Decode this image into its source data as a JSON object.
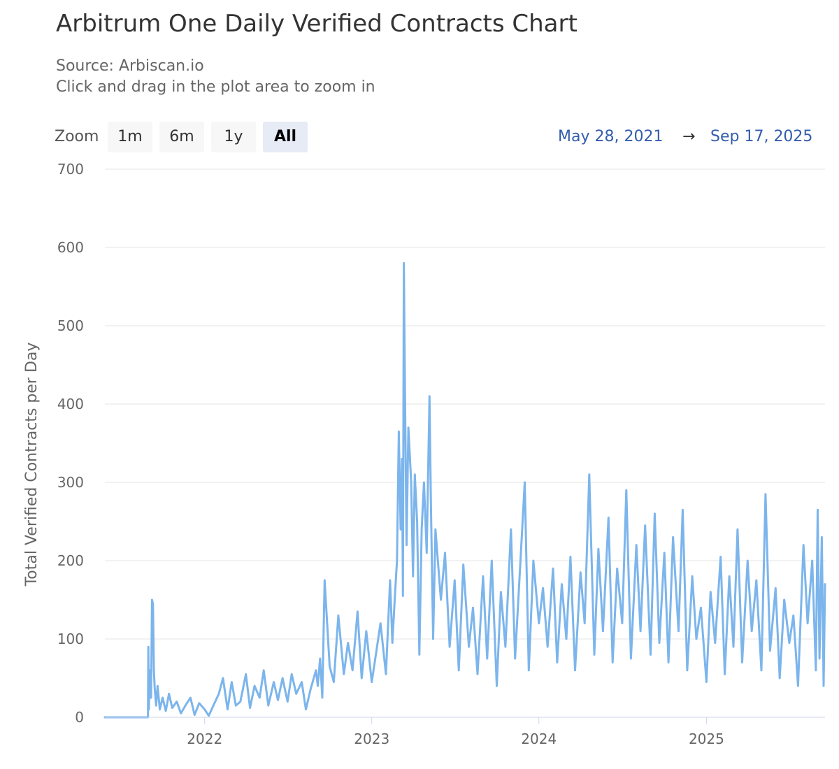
{
  "title": "Arbitrum One Daily Verified Contracts Chart",
  "subtitle_source": "Source: Arbiscan.io",
  "subtitle_hint": "Click and drag in the plot area to zoom in",
  "zoom": {
    "label": "Zoom",
    "buttons": [
      "1m",
      "6m",
      "1y",
      "All"
    ],
    "selected": "All"
  },
  "range": {
    "from": "May 28, 2021",
    "arrow": "→",
    "to": "Sep 17, 2025"
  },
  "colors": {
    "series": "#7cb5ec",
    "grid": "#e6e6e6",
    "axis": "#ccd6eb"
  },
  "chart_data": {
    "type": "line",
    "title": "Arbitrum One Daily Verified Contracts Chart",
    "ylabel": "Total Verified Contracts per Day",
    "xlabel": "",
    "xlim": [
      "2021-05-28",
      "2025-09-17"
    ],
    "ylim": [
      0,
      700
    ],
    "y_ticks": [
      0,
      100,
      200,
      300,
      400,
      500,
      600,
      700
    ],
    "x_ticks": [
      "2022",
      "2023",
      "2024",
      "2025"
    ],
    "x_tick_dates": [
      "2022-01-01",
      "2023-01-01",
      "2024-01-01",
      "2025-01-01"
    ],
    "grid": true,
    "legend": "none",
    "series": [
      {
        "x": [
          "2021-05-28",
          "2021-08-30",
          "2021-08-31",
          "2021-09-01",
          "2021-09-03",
          "2021-09-06",
          "2021-09-08",
          "2021-09-10",
          "2021-09-12",
          "2021-09-14",
          "2021-09-17",
          "2021-09-20",
          "2021-09-25",
          "2021-10-01",
          "2021-10-08",
          "2021-10-15",
          "2021-10-22",
          "2021-11-01",
          "2021-11-10",
          "2021-11-20",
          "2021-12-01",
          "2021-12-10",
          "2021-12-20",
          "2022-01-01",
          "2022-01-10",
          "2022-01-20",
          "2022-02-01",
          "2022-02-10",
          "2022-02-20",
          "2022-03-01",
          "2022-03-10",
          "2022-03-20",
          "2022-04-01",
          "2022-04-10",
          "2022-04-20",
          "2022-05-01",
          "2022-05-10",
          "2022-05-20",
          "2022-06-01",
          "2022-06-10",
          "2022-06-20",
          "2022-07-01",
          "2022-07-10",
          "2022-07-20",
          "2022-08-01",
          "2022-08-10",
          "2022-08-20",
          "2022-09-01",
          "2022-09-05",
          "2022-09-10",
          "2022-09-15",
          "2022-09-20",
          "2022-10-01",
          "2022-10-10",
          "2022-10-20",
          "2022-11-01",
          "2022-11-10",
          "2022-11-20",
          "2022-12-01",
          "2022-12-10",
          "2022-12-20",
          "2023-01-01",
          "2023-01-10",
          "2023-01-20",
          "2023-02-01",
          "2023-02-10",
          "2023-02-15",
          "2023-02-20",
          "2023-02-25",
          "2023-03-01",
          "2023-03-05",
          "2023-03-08",
          "2023-03-10",
          "2023-03-12",
          "2023-03-15",
          "2023-03-18",
          "2023-03-22",
          "2023-03-28",
          "2023-04-01",
          "2023-04-05",
          "2023-04-10",
          "2023-04-15",
          "2023-04-20",
          "2023-04-25",
          "2023-05-01",
          "2023-05-07",
          "2023-05-10",
          "2023-05-15",
          "2023-05-20",
          "2023-06-01",
          "2023-06-10",
          "2023-06-20",
          "2023-07-01",
          "2023-07-10",
          "2023-07-20",
          "2023-08-01",
          "2023-08-10",
          "2023-08-20",
          "2023-09-01",
          "2023-09-10",
          "2023-09-20",
          "2023-10-01",
          "2023-10-10",
          "2023-10-20",
          "2023-11-01",
          "2023-11-10",
          "2023-11-20",
          "2023-12-01",
          "2023-12-10",
          "2023-12-20",
          "2024-01-01",
          "2024-01-10",
          "2024-01-20",
          "2024-02-01",
          "2024-02-10",
          "2024-02-20",
          "2024-03-01",
          "2024-03-10",
          "2024-03-20",
          "2024-04-01",
          "2024-04-10",
          "2024-04-20",
          "2024-05-01",
          "2024-05-10",
          "2024-05-20",
          "2024-06-01",
          "2024-06-10",
          "2024-06-20",
          "2024-07-01",
          "2024-07-10",
          "2024-07-20",
          "2024-08-01",
          "2024-08-10",
          "2024-08-20",
          "2024-09-01",
          "2024-09-10",
          "2024-09-20",
          "2024-10-01",
          "2024-10-10",
          "2024-10-20",
          "2024-11-01",
          "2024-11-10",
          "2024-11-20",
          "2024-12-01",
          "2024-12-10",
          "2024-12-20",
          "2025-01-01",
          "2025-01-10",
          "2025-01-20",
          "2025-02-01",
          "2025-02-10",
          "2025-02-20",
          "2025-03-01",
          "2025-03-10",
          "2025-03-20",
          "2025-04-01",
          "2025-04-10",
          "2025-04-20",
          "2025-05-01",
          "2025-05-10",
          "2025-05-20",
          "2025-06-01",
          "2025-06-10",
          "2025-06-20",
          "2025-07-01",
          "2025-07-10",
          "2025-07-20",
          "2025-08-01",
          "2025-08-10",
          "2025-08-20",
          "2025-08-28",
          "2025-09-01",
          "2025-09-05",
          "2025-09-10",
          "2025-09-14",
          "2025-09-17"
        ],
        "values": [
          0,
          0,
          90,
          10,
          60,
          25,
          150,
          145,
          60,
          35,
          15,
          40,
          10,
          25,
          8,
          30,
          12,
          20,
          5,
          15,
          25,
          3,
          18,
          10,
          2,
          15,
          30,
          50,
          10,
          45,
          15,
          20,
          55,
          12,
          40,
          25,
          60,
          15,
          45,
          22,
          50,
          20,
          55,
          30,
          45,
          10,
          35,
          60,
          40,
          75,
          25,
          175,
          65,
          45,
          130,
          55,
          95,
          60,
          135,
          50,
          110,
          45,
          80,
          120,
          55,
          175,
          95,
          150,
          200,
          365,
          240,
          330,
          155,
          580,
          390,
          220,
          370,
          300,
          180,
          310,
          250,
          80,
          240,
          300,
          210,
          410,
          280,
          100,
          240,
          150,
          210,
          90,
          175,
          60,
          195,
          90,
          140,
          55,
          180,
          75,
          200,
          40,
          160,
          90,
          240,
          75,
          180,
          300,
          60,
          200,
          120,
          165,
          90,
          190,
          70,
          170,
          100,
          205,
          60,
          185,
          120,
          310,
          80,
          215,
          110,
          255,
          70,
          190,
          120,
          290,
          75,
          220,
          110,
          245,
          80,
          260,
          95,
          210,
          70,
          230,
          110,
          265,
          60,
          180,
          100,
          140,
          45,
          160,
          95,
          205,
          55,
          180,
          90,
          240,
          70,
          200,
          110,
          175,
          60,
          285,
          85,
          165,
          50,
          150,
          95,
          130,
          40,
          220,
          120,
          200,
          60,
          265,
          75,
          230,
          40,
          170
        ]
      }
    ]
  }
}
